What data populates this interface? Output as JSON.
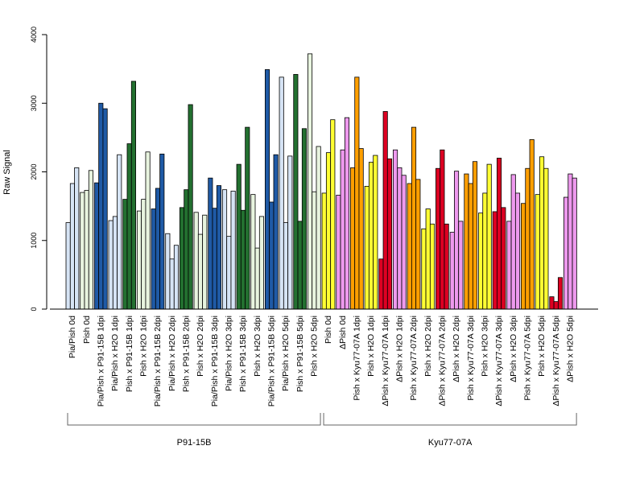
{
  "chart_data": {
    "type": "bar",
    "ylabel": "Raw Signal",
    "ylim": [
      0,
      4000
    ],
    "yticks": [
      0,
      1000,
      2000,
      3000,
      4000
    ],
    "grid": false,
    "legend": "none",
    "groups": [
      {
        "label": "P91-15B",
        "categories": [
          "Pia/Pish 0d",
          "Pish 0d",
          "Pia/Pish x P91-15B 1dpi",
          "Pia/Pish x H2O 1dpi",
          "Pish x P91-15B 1dpi",
          "Pish x H2O 1dpi",
          "Pia/Pish x P91-15B 2dpi",
          "Pia/Pish x H2O 2dpi",
          "Pish x P91-15B 2dpi",
          "Pish x H2O 2dpi",
          "Pia/Pish x P91-15B 3dpi",
          "Pia/Pish x H2O 3dpi",
          "Pish x P91-15B 3dpi",
          "Pish x H2O 3dpi",
          "Pia/Pish x P91-15B 5dpi",
          "Pia/Pish x H2O 5dpi",
          "Pish x P91-15B 5dpi",
          "Pish x H2O 5dpi"
        ],
        "colors": [
          "#d6e4f5",
          "#e8f4df",
          "#1f5aa6",
          "#d6e4f5",
          "#237030",
          "#e8f4df",
          "#1f5aa6",
          "#d6e4f5",
          "#237030",
          "#e8f4df",
          "#1f5aa6",
          "#d6e4f5",
          "#237030",
          "#e8f4df",
          "#1f5aa6",
          "#d6e4f5",
          "#237030",
          "#e8f4df"
        ],
        "values": [
          [
            1260,
            1830,
            2060
          ],
          [
            1700,
            1730,
            2020
          ],
          [
            1840,
            3000,
            2920
          ],
          [
            1290,
            1350,
            2250
          ],
          [
            1600,
            2410,
            3320
          ],
          [
            1430,
            1600,
            2290
          ],
          [
            1460,
            1760,
            2260
          ],
          [
            1100,
            730,
            930
          ],
          [
            1480,
            1740,
            2980
          ],
          [
            1410,
            1090,
            1370
          ],
          [
            1910,
            1470,
            1800
          ],
          [
            1740,
            1060,
            1720
          ],
          [
            2110,
            1440,
            2650
          ],
          [
            1670,
            890,
            1350
          ],
          [
            3490,
            1560,
            2250
          ],
          [
            3380,
            1260,
            2230
          ],
          [
            3420,
            1280,
            2630
          ],
          [
            3720,
            1710,
            2370
          ]
        ]
      },
      {
        "label": "Kyu77-07A",
        "categories": [
          "Pish 0d",
          "ΔPish 0d",
          "Pish x Kyu77-07A 1dpi",
          "Pish x H2O 1dpi",
          "ΔPish x Kyu77-07A 1dpi",
          "ΔPish x H2O 1dpi",
          "Pish x Kyu77-07A 2dpi",
          "Pish x H2O 2dpi",
          "ΔPish x Kyu77-07A 2dpi",
          "ΔPish x H2O 2dpi",
          "Pish x Kyu77-07A 3dpi",
          "Pish x H2O 3dpi",
          "ΔPish x Kyu77-07A 3dpi",
          "ΔPish x H2O 3dpi",
          "Pish x Kyu77-07A 5dpi",
          "Pish x H2O 5dpi",
          "ΔPish x Kyu77-07A 5dpi",
          "ΔPish x H2O 5dpi"
        ],
        "colors": [
          "#ffff33",
          "#ee99ee",
          "#ff9f00",
          "#ffff33",
          "#dd0022",
          "#ee99ee",
          "#ff9f00",
          "#ffff33",
          "#dd0022",
          "#ee99ee",
          "#ff9f00",
          "#ffff33",
          "#dd0022",
          "#ee99ee",
          "#ff9f00",
          "#ffff33",
          "#dd0022",
          "#ee99ee"
        ],
        "values": [
          [
            1690,
            2280,
            2760
          ],
          [
            1660,
            2320,
            2790
          ],
          [
            2060,
            3380,
            2340
          ],
          [
            1790,
            2140,
            2240
          ],
          [
            730,
            2880,
            2190
          ],
          [
            2320,
            2060,
            1950
          ],
          [
            1830,
            2650,
            1890
          ],
          [
            1170,
            1460,
            1240
          ],
          [
            2050,
            2320,
            1240
          ],
          [
            1120,
            2010,
            1280
          ],
          [
            1970,
            1830,
            2150
          ],
          [
            1400,
            1690,
            2110
          ],
          [
            1420,
            2200,
            1480
          ],
          [
            1280,
            1960,
            1690
          ],
          [
            1540,
            2050,
            2470
          ],
          [
            1670,
            2220,
            2050
          ],
          [
            180,
            110,
            460
          ],
          [
            1630,
            1970,
            1910
          ]
        ]
      }
    ]
  }
}
